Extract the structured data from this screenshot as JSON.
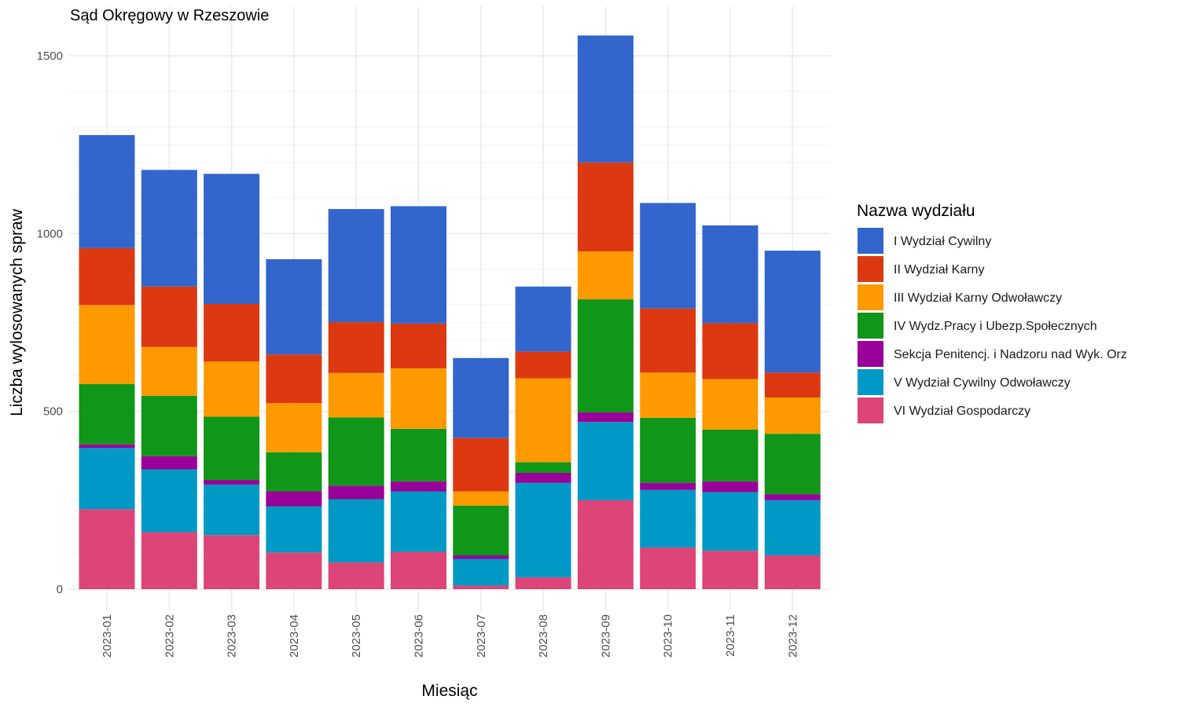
{
  "chart_data": {
    "type": "bar",
    "stacked": true,
    "title": "Sąd Okręgowy w Rzeszowie",
    "xlabel": "Miesiąc",
    "ylabel": "Liczba wylosowanych spraw",
    "ylim": [
      0,
      1600
    ],
    "yticks": [
      0,
      500,
      1000,
      1500
    ],
    "grid": true,
    "legend_title": "Nazwa wydziału",
    "legend_position": "right",
    "categories": [
      "2023-01",
      "2023-02",
      "2023-03",
      "2023-04",
      "2023-05",
      "2023-06",
      "2023-07",
      "2023-08",
      "2023-09",
      "2023-10",
      "2023-11",
      "2023-12"
    ],
    "series": [
      {
        "name": "VI Wydział Gospodarczy",
        "color": "#dd4477",
        "values": [
          225,
          160,
          152,
          103,
          75,
          105,
          10,
          33,
          250,
          117,
          108,
          95
        ]
      },
      {
        "name": "V Wydział Cywilny Odwoławczy",
        "color": "#0099c6",
        "values": [
          172,
          177,
          142,
          130,
          178,
          170,
          75,
          266,
          220,
          162,
          165,
          155
        ]
      },
      {
        "name": "Sekcja Penitencj. i Nadzoru nad Wyk. Orz",
        "color": "#990099",
        "values": [
          10,
          37,
          13,
          42,
          38,
          28,
          10,
          28,
          27,
          20,
          30,
          17
        ]
      },
      {
        "name": "IV Wydz.Pracy i Ubezp.Społecznych",
        "color": "#109618",
        "values": [
          170,
          170,
          178,
          110,
          192,
          148,
          140,
          30,
          318,
          183,
          146,
          170
        ]
      },
      {
        "name": "III Wydział Karny Odwoławczy",
        "color": "#ff9900",
        "values": [
          222,
          137,
          155,
          138,
          125,
          170,
          40,
          236,
          135,
          127,
          142,
          102
        ]
      },
      {
        "name": "II Wydział Karny",
        "color": "#dc3912",
        "values": [
          160,
          170,
          162,
          137,
          143,
          126,
          150,
          75,
          250,
          180,
          157,
          70
        ]
      },
      {
        "name": "I Wydział Cywilny",
        "color": "#3366cc",
        "values": [
          318,
          328,
          366,
          268,
          318,
          330,
          225,
          183,
          357,
          297,
          275,
          343
        ]
      }
    ],
    "legend_order": [
      "I Wydział Cywilny",
      "II Wydział Karny",
      "III Wydział Karny Odwoławczy",
      "IV Wydz.Pracy i Ubezp.Społecznych",
      "Sekcja Penitencj. i Nadzoru nad Wyk. Orz",
      "V Wydział Cywilny Odwoławczy",
      "VI Wydział Gospodarczy"
    ]
  }
}
